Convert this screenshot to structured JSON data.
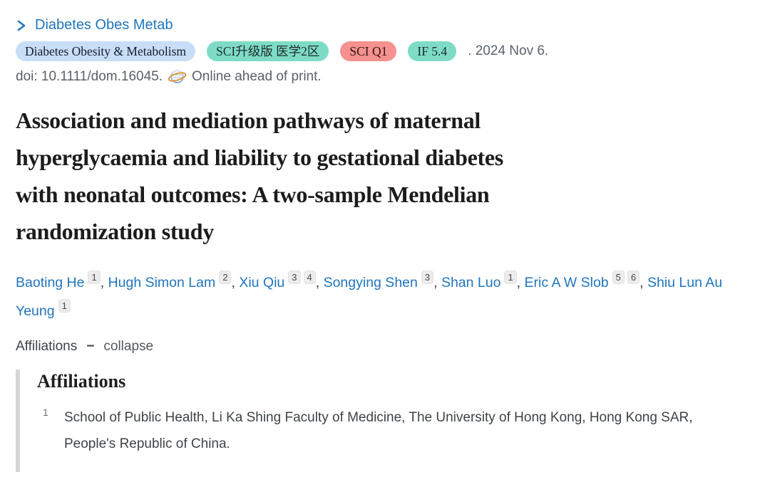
{
  "breadcrumb": {
    "journal": "Diabetes Obes Metab"
  },
  "badges": [
    {
      "name": "journal-name-badge",
      "label": "Diabetes Obesity & Metabolism",
      "bg": "#c8ddf6",
      "color": "#141e2c"
    },
    {
      "name": "sci-tier-badge",
      "label": "SCI升级版 医学2区",
      "bg": "#7edcc6",
      "color": "#1d2b2b"
    },
    {
      "name": "sci-quartile-badge",
      "label": "SCI Q1",
      "bg": "#f5918e",
      "color": "#2e1414"
    },
    {
      "name": "impact-factor-badge",
      "label": "IF 5.4",
      "bg": "#7edcc6",
      "color": "#1d2b2b"
    }
  ],
  "citation": {
    "date_suffix": ". 2024 Nov 6."
  },
  "doi_line": {
    "doi": "doi: 10.1111/dom.16045.",
    "status": "Online ahead of print."
  },
  "title": {
    "lines": [
      "Association and mediation pathways of maternal",
      "hyperglycaemia and liability to gestational diabetes",
      "with neonatal outcomes: A two-sample Mendelian",
      "randomization study"
    ]
  },
  "authors": {
    "separator": ", ",
    "list": [
      {
        "name": "Baoting He",
        "sups": [
          "1"
        ]
      },
      {
        "name": "Hugh Simon Lam",
        "sups": [
          "2"
        ]
      },
      {
        "name": "Xiu Qiu",
        "sups": [
          "3",
          "4"
        ]
      },
      {
        "name": "Songying Shen",
        "sups": [
          "3"
        ]
      },
      {
        "name": "Shan Luo",
        "sups": [
          "1"
        ]
      },
      {
        "name": "Eric A W Slob",
        "sups": [
          "5",
          "6"
        ]
      },
      {
        "name": "Shiu Lun Au Yeung",
        "sups": [
          "1"
        ]
      }
    ]
  },
  "affiliations_toggle": {
    "label": "Affiliations",
    "dash": "−",
    "action": "collapse"
  },
  "affiliations_section": {
    "heading": "Affiliations",
    "items": [
      {
        "num": "1",
        "text": "School of Public Health, Li Ka Shing Faculty of Medicine, The University of Hong Kong, Hong Kong SAR, People's Republic of China."
      }
    ]
  },
  "icons": {
    "breadcrumb": "chevron-right-icon",
    "doi": "globe-orbit-icon",
    "toggle": "minus-icon"
  },
  "colors": {
    "link_blue": "#2176bd",
    "muted_gray": "#5b6167",
    "title_black": "#1c1c1c",
    "section_bar": "#d6d6d6",
    "sup_bg": "#ececec"
  }
}
